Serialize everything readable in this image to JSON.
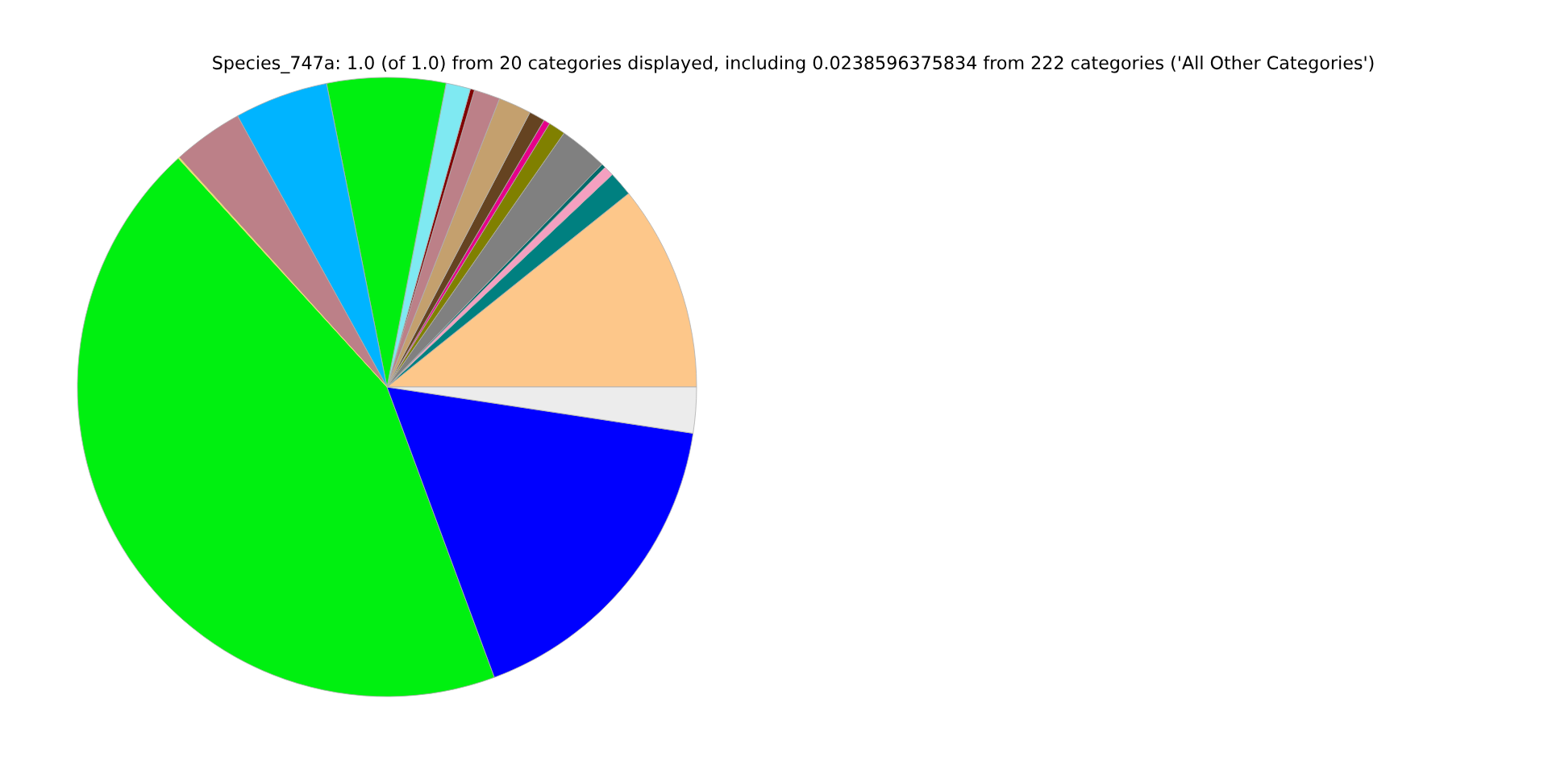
{
  "chart_data": {
    "type": "pie",
    "title": "Species_747a: 1.0 (of 1.0) from 20 categories displayed, including 0.0238596375834 from 222 categories ('All Other Categories')",
    "categories": [
      null,
      null,
      null,
      null,
      null,
      null,
      null,
      null,
      null,
      null,
      null,
      null,
      null,
      null,
      null,
      null,
      null,
      null,
      null
    ],
    "values": [
      10.75,
      1.28,
      0.53,
      0.22,
      2.53,
      0.89,
      0.33,
      0.83,
      1.72,
      1.36,
      0.22,
      1.28,
      6.19,
      4.89,
      3.69,
      0.06,
      43.87,
      16.97,
      2.39
    ],
    "colors": [
      "#fdc78a",
      "#008080",
      "#f4a0c0",
      "#006b6b",
      "#808080",
      "#808000",
      "#e6008a",
      "#654321",
      "#c4a06e",
      "#bc8088",
      "#800000",
      "#7fe9f2",
      "#00f010",
      "#00b4ff",
      "#bc8088",
      "#e8e070",
      "#00f010",
      "#0000ff",
      "#ececec"
    ]
  }
}
